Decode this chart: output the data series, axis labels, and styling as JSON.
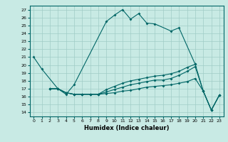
{
  "title": "",
  "xlabel": "Humidex (Indice chaleur)",
  "xlim": [
    -0.5,
    23.5
  ],
  "ylim": [
    13.5,
    27.5
  ],
  "xticks": [
    0,
    1,
    2,
    3,
    4,
    5,
    6,
    7,
    8,
    9,
    10,
    11,
    12,
    13,
    14,
    15,
    16,
    17,
    18,
    19,
    20,
    21,
    22,
    23
  ],
  "yticks": [
    14,
    15,
    16,
    17,
    18,
    19,
    20,
    21,
    22,
    23,
    24,
    25,
    26,
    27
  ],
  "bg_color": "#c8eae4",
  "grid_color": "#a0ccc6",
  "line_color": "#006666",
  "lines": [
    {
      "x": [
        0,
        1,
        3,
        4,
        5,
        9,
        10,
        11,
        12,
        13,
        14,
        15,
        17,
        18,
        20
      ],
      "y": [
        21.0,
        19.5,
        17.0,
        16.3,
        17.5,
        25.5,
        26.3,
        27.0,
        25.8,
        26.5,
        25.3,
        25.2,
        24.3,
        24.7,
        20.1
      ]
    },
    {
      "x": [
        2,
        3,
        4,
        5,
        6,
        7,
        8,
        9,
        10,
        11,
        12,
        13,
        14,
        15,
        16,
        17,
        18,
        19,
        20,
        21,
        22,
        23
      ],
      "y": [
        17.0,
        17.0,
        16.5,
        16.3,
        16.3,
        16.3,
        16.3,
        16.4,
        16.5,
        16.7,
        16.8,
        17.0,
        17.2,
        17.3,
        17.4,
        17.5,
        17.7,
        17.9,
        18.3,
        16.7,
        14.3,
        16.2
      ]
    },
    {
      "x": [
        2,
        3,
        4,
        5,
        6,
        7,
        8,
        9,
        10,
        11,
        12,
        13,
        14,
        15,
        16,
        17,
        18,
        19,
        20,
        21,
        22,
        23
      ],
      "y": [
        17.0,
        17.0,
        16.5,
        16.3,
        16.3,
        16.3,
        16.3,
        16.6,
        16.9,
        17.2,
        17.5,
        17.7,
        17.9,
        18.1,
        18.1,
        18.3,
        18.7,
        19.2,
        19.8,
        16.7,
        14.3,
        16.2
      ]
    },
    {
      "x": [
        2,
        3,
        4,
        5,
        6,
        7,
        8,
        9,
        10,
        11,
        12,
        13,
        14,
        15,
        16,
        17,
        18,
        19,
        20,
        21,
        22,
        23
      ],
      "y": [
        17.0,
        17.0,
        16.5,
        16.3,
        16.3,
        16.3,
        16.3,
        16.9,
        17.3,
        17.7,
        18.0,
        18.2,
        18.4,
        18.6,
        18.7,
        18.9,
        19.2,
        19.7,
        20.1,
        16.7,
        14.3,
        16.2
      ]
    }
  ]
}
